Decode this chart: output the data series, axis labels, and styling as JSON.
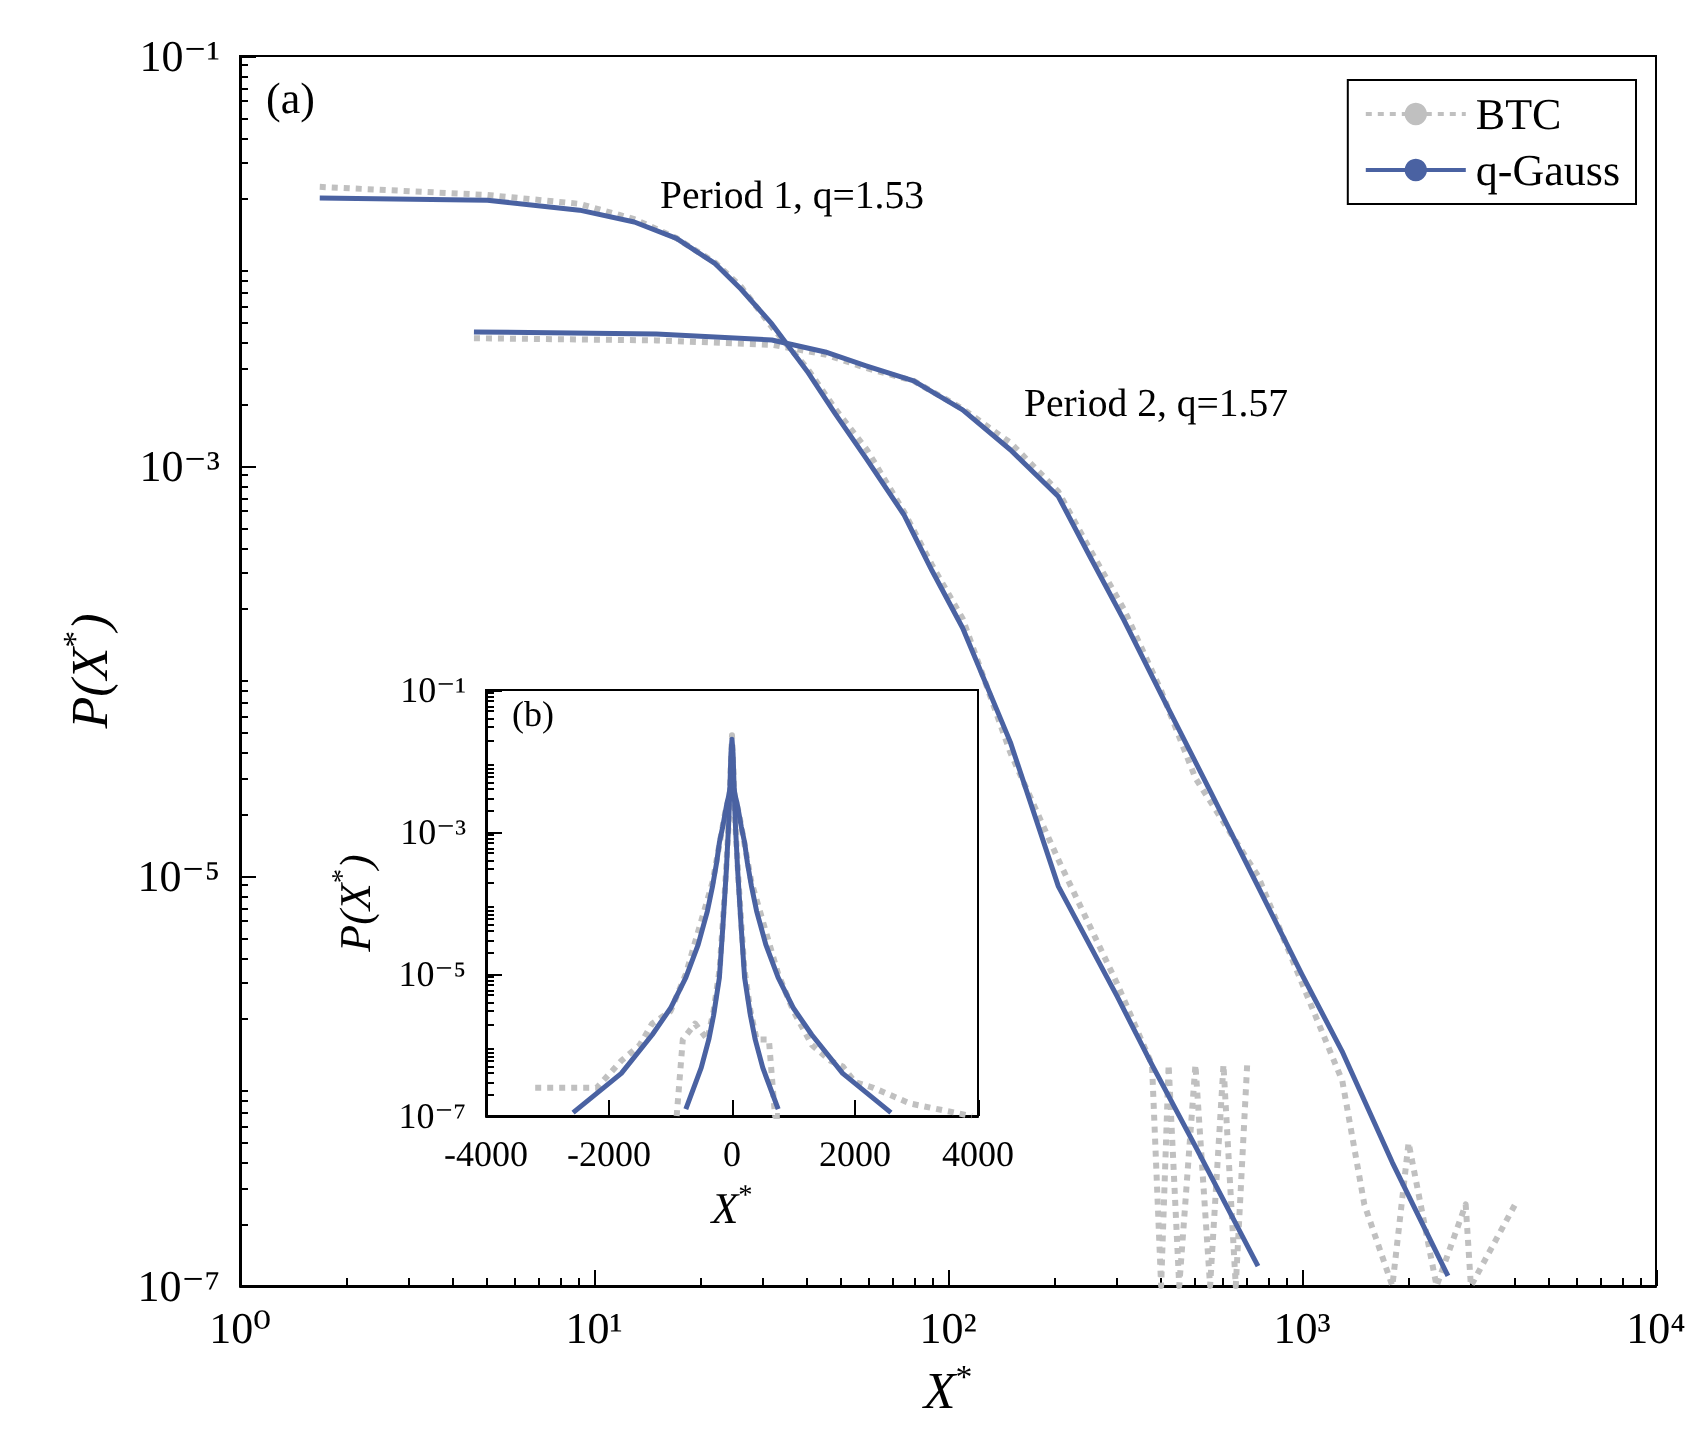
{
  "chart_data": [
    {
      "type": "line",
      "xlabel": "X$^{*}$",
      "ylabel": "P(X$^{*}$)",
      "log": "xy",
      "grid": false,
      "legend": "top right",
      "marker": "none",
      "xlim": [
        1,
        10000
      ],
      "xticks": [
        {
          "value": 1,
          "label": "10⁰"
        },
        {
          "value": 10,
          "label": "10¹"
        },
        {
          "value": 100,
          "label": "10²"
        },
        {
          "value": 1000,
          "label": "10³"
        },
        {
          "value": 10000,
          "label": "10⁴"
        }
      ],
      "ylim": [
        1e-07,
        0.1
      ],
      "yticks": [
        {
          "value": 1e-07,
          "label": "10⁻⁷"
        },
        {
          "value": 1e-05,
          "label": "10⁻⁵"
        },
        {
          "value": 0.001,
          "label": "10⁻³"
        },
        {
          "value": 0.1,
          "label": "10⁻¹"
        }
      ],
      "annotations": [
        "(a)",
        "Period 1, q=1.53",
        "Period 2, q=1.57"
      ],
      "series": [
        {
          "name": "BTC",
          "color": "#c0c0c0",
          "line_style": "dotted",
          "x": [
            1.68,
            5,
            9.1,
            13,
            17,
            22,
            26,
            32,
            40,
            48,
            59,
            75,
            90,
            110,
            150,
            205,
            300,
            377,
            400,
            420,
            450,
            500,
            550,
            600,
            650,
            700
          ],
          "values": [
            0.023,
            0.021,
            0.019,
            0.016,
            0.013,
            0.0098,
            0.0075,
            0.0047,
            0.003,
            0.0019,
            0.0012,
            0.0006,
            0.00033,
            0.00018,
            4e-05,
            1.2e-05,
            3e-06,
            1.2e-06,
            1e-07,
            1.2e-06,
            1e-07,
            1.2e-06,
            1e-07,
            1.2e-06,
            1e-07,
            1.2e-06
          ]
        },
        {
          "color": "#c0c0c0",
          "line_style": "dotted",
          "x": [
            4.58,
            15,
            32,
            45,
            59,
            80,
            110,
            150,
            205,
            250,
            314,
            400,
            500,
            751,
            1000,
            1300,
            1500,
            1800,
            2000,
            2400,
            2900,
            3000,
            4000
          ],
          "values": [
            0.0042,
            0.0041,
            0.0039,
            0.0035,
            0.003,
            0.0026,
            0.0019,
            0.0013,
            0.00075,
            0.0004,
            0.0002,
            8e-05,
            3e-05,
            1e-05,
            3e-06,
            1e-06,
            2.5e-07,
            1e-07,
            5e-07,
            1e-07,
            2.5e-07,
            1e-07,
            2.5e-07
          ]
        },
        {
          "name": "q-Gauss",
          "color": "#4a62a2",
          "line_style": "solid",
          "x": [
            1.68,
            5,
            9.1,
            13,
            17.1,
            22,
            26,
            31.8,
            40,
            48,
            58.7,
            75,
            90,
            110,
            150,
            205,
            300,
            377,
            500,
            751
          ],
          "values": [
            0.0203,
            0.0198,
            0.0177,
            0.0155,
            0.0129,
            0.0097,
            0.0073,
            0.00493,
            0.0029,
            0.0018,
            0.00109,
            0.00058,
            0.00031,
            0.000162,
            4.5e-05,
            8.9e-06,
            2.6e-06,
            1.2e-06,
            4.8e-07,
            1.25e-07
          ]
        },
        {
          "color": "#4a62a2",
          "line_style": "solid",
          "x": [
            4.58,
            15,
            31.8,
            45,
            58.7,
            80,
            110,
            150,
            205,
            250,
            314,
            400,
            550,
            751,
            1000,
            1297,
            1800,
            2584
          ],
          "values": [
            0.00451,
            0.0044,
            0.00412,
            0.0036,
            0.00308,
            0.0026,
            0.00188,
            0.0012,
            0.00071,
            0.00037,
            0.000177,
            7.7e-05,
            2.6e-05,
            8.9e-06,
            3.3e-06,
            1.4e-06,
            4e-07,
            1.12e-07
          ]
        }
      ]
    },
    {
      "type": "line",
      "xlabel": "X$^{*}$",
      "ylabel": "P(X$^{*}$)",
      "log": "y",
      "grid": false,
      "legend": false,
      "marker": "none",
      "xlim": [
        -4000,
        4000
      ],
      "xticks": [
        -4000,
        -2000,
        0,
        2000,
        4000
      ],
      "ylim": [
        1e-07,
        0.1
      ],
      "yticks": [
        {
          "value": 1e-07,
          "label": "10⁻⁷"
        },
        {
          "value": 1e-05,
          "label": "10⁻⁵"
        },
        {
          "value": 0.001,
          "label": "10⁻³"
        },
        {
          "value": 0.1,
          "label": "10⁻¹"
        }
      ],
      "annotations": [
        "(b)"
      ],
      "series": [
        {
          "color": "#c0c0c0",
          "line_style": "dotted",
          "x": [
            -900,
            -800,
            -600,
            -400,
            -300,
            -200,
            -110,
            -59,
            -32,
            0,
            32,
            59,
            110,
            200,
            300,
            400,
            500,
            600,
            700,
            800
          ],
          "values": [
            1e-07,
            1.2e-06,
            2e-06,
            1.2e-06,
            3e-06,
            1.2e-05,
            0.00018,
            0.0011,
            0.0045,
            0.023,
            0.0045,
            0.0011,
            0.00018,
            1.2e-05,
            3e-06,
            1.2e-06,
            1.2e-06,
            1.2e-06,
            1e-07,
            1e-07
          ]
        },
        {
          "color": "#c0c0c0",
          "line_style": "dotted",
          "x": [
            -3200,
            -2800,
            -2200,
            -1800,
            -1500,
            -1300,
            -1000,
            -751,
            -314,
            -110,
            0,
            110,
            314,
            751,
            1000,
            1300,
            1600,
            1800,
            2000,
            2300,
            2900,
            3900
          ],
          "values": [
            2.5e-07,
            2.5e-07,
            2.5e-07,
            6e-07,
            1e-06,
            2e-06,
            3e-06,
            1e-05,
            0.0002,
            0.0019,
            0.0042,
            0.0019,
            0.0002,
            1e-05,
            3e-06,
            1e-06,
            6e-07,
            5e-07,
            3e-07,
            2.5e-07,
            1.5e-07,
            1e-07
          ]
        },
        {
          "color": "#4a62a2",
          "line_style": "solid",
          "x": [
            -751,
            -500,
            -377,
            -300,
            -205,
            -150,
            -110,
            -90,
            -75,
            -58.7,
            -48,
            -40,
            -31.8,
            -22,
            -17.1,
            0,
            17.1,
            22,
            31.8,
            40,
            48,
            58.7,
            75,
            90,
            110,
            150,
            205,
            300,
            377,
            500,
            751
          ],
          "values": [
            1.25e-07,
            4.8e-07,
            1.2e-06,
            2.6e-06,
            8.9e-06,
            4.5e-05,
            0.000162,
            0.00031,
            0.00058,
            0.00109,
            0.0018,
            0.0029,
            0.00493,
            0.0097,
            0.0129,
            0.0203,
            0.0129,
            0.0097,
            0.00493,
            0.0029,
            0.0018,
            0.00109,
            0.00058,
            0.00031,
            0.000162,
            4.5e-05,
            8.9e-06,
            2.6e-06,
            1.2e-06,
            4.8e-07,
            1.25e-07
          ]
        },
        {
          "color": "#4a62a2",
          "line_style": "solid",
          "x": [
            -2584,
            -1800,
            -1297,
            -1000,
            -751,
            -550,
            -400,
            -314,
            -250,
            -205,
            -150,
            -110,
            -80,
            -58.7,
            -31.8,
            0,
            31.8,
            58.7,
            80,
            110,
            150,
            205,
            250,
            314,
            400,
            550,
            751,
            1000,
            1297,
            1800,
            2584
          ],
          "values": [
            1.12e-07,
            4e-07,
            1.4e-06,
            3.3e-06,
            8.9e-06,
            2.6e-05,
            7.7e-05,
            0.000177,
            0.00037,
            0.00071,
            0.0012,
            0.00188,
            0.0026,
            0.00308,
            0.00412,
            0.00451,
            0.00412,
            0.00308,
            0.0026,
            0.00188,
            0.0012,
            0.00071,
            0.00037,
            0.000177,
            7.7e-05,
            2.6e-05,
            8.9e-06,
            3.3e-06,
            1.4e-06,
            4e-07,
            1.12e-07
          ]
        }
      ]
    }
  ]
}
